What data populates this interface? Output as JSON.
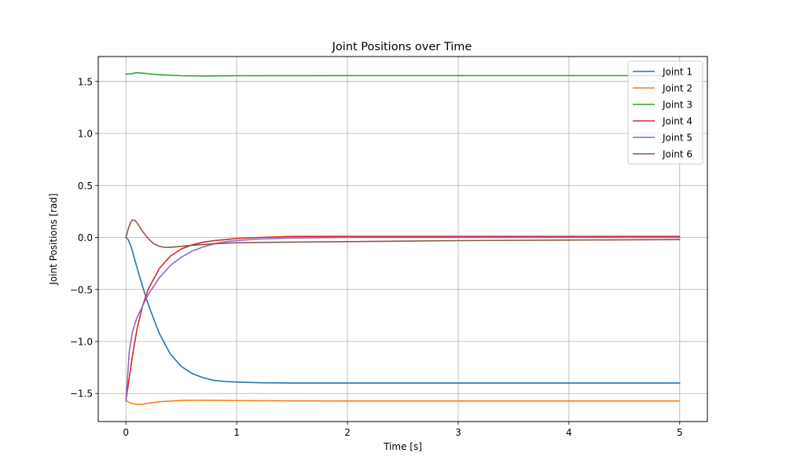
{
  "chart_data": {
    "type": "line",
    "title": "Joint Positions over Time",
    "xlabel": "Time [s]",
    "ylabel": "Joint Positions [rad]",
    "xlim": [
      -0.25,
      5.25
    ],
    "ylim": [
      -1.77,
      1.74
    ],
    "xticks": [
      0,
      1,
      2,
      3,
      4,
      5
    ],
    "xtick_labels": [
      "0",
      "1",
      "2",
      "3",
      "4",
      "5"
    ],
    "yticks": [
      -1.5,
      -1.0,
      -0.5,
      0.0,
      0.5,
      1.0,
      1.5
    ],
    "ytick_labels": [
      "−1.5",
      "−1.0",
      "−0.5",
      "0.0",
      "0.5",
      "1.0",
      "1.5"
    ],
    "grid": true,
    "legend_position": "top-right",
    "series": [
      {
        "name": "Joint 1",
        "color": "#1f77b4",
        "x": [
          0,
          0.02,
          0.05,
          0.1,
          0.15,
          0.2,
          0.3,
          0.4,
          0.5,
          0.6,
          0.7,
          0.8,
          0.9,
          1.0,
          1.2,
          1.5,
          2,
          3,
          4,
          5
        ],
        "y": [
          0,
          -0.02,
          -0.1,
          -0.29,
          -0.47,
          -0.64,
          -0.92,
          -1.12,
          -1.24,
          -1.31,
          -1.35,
          -1.375,
          -1.385,
          -1.39,
          -1.397,
          -1.4,
          -1.4,
          -1.4,
          -1.4,
          -1.4
        ]
      },
      {
        "name": "Joint 2",
        "color": "#ff7f0e",
        "x": [
          0,
          0.05,
          0.1,
          0.15,
          0.2,
          0.3,
          0.5,
          0.7,
          1.0,
          1.5,
          2,
          3,
          4,
          5
        ],
        "y": [
          -1.57,
          -1.595,
          -1.605,
          -1.603,
          -1.595,
          -1.58,
          -1.567,
          -1.565,
          -1.568,
          -1.571,
          -1.572,
          -1.572,
          -1.572,
          -1.572
        ]
      },
      {
        "name": "Joint 3",
        "color": "#2ca02c",
        "x": [
          0,
          0.05,
          0.1,
          0.2,
          0.3,
          0.5,
          0.7,
          1.0,
          2,
          3,
          4,
          5
        ],
        "y": [
          1.57,
          1.575,
          1.585,
          1.575,
          1.565,
          1.555,
          1.553,
          1.555,
          1.556,
          1.556,
          1.556,
          1.556
        ]
      },
      {
        "name": "Joint 4",
        "color": "#d62728",
        "x": [
          0,
          0.03,
          0.06,
          0.1,
          0.15,
          0.2,
          0.3,
          0.4,
          0.5,
          0.6,
          0.7,
          0.8,
          0.9,
          1.0,
          1.2,
          1.5,
          2,
          3,
          4,
          5
        ],
        "y": [
          -1.57,
          -1.35,
          -1.13,
          -0.88,
          -0.66,
          -0.5,
          -0.3,
          -0.18,
          -0.11,
          -0.07,
          -0.045,
          -0.03,
          -0.02,
          -0.01,
          0.0,
          0.01,
          0.01,
          0.01,
          0.01,
          0.01
        ]
      },
      {
        "name": "Joint 5",
        "color": "#9467bd",
        "x": [
          0,
          0.03,
          0.06,
          0.1,
          0.15,
          0.2,
          0.3,
          0.4,
          0.5,
          0.6,
          0.7,
          0.8,
          0.9,
          1.0,
          1.2,
          1.5,
          2,
          3,
          4,
          5
        ],
        "y": [
          -1.57,
          -1.1,
          -0.9,
          -0.77,
          -0.66,
          -0.55,
          -0.39,
          -0.27,
          -0.19,
          -0.13,
          -0.09,
          -0.06,
          -0.04,
          -0.03,
          -0.015,
          -0.005,
          0.0,
          0.0,
          0.0,
          0.0
        ]
      },
      {
        "name": "Joint 6",
        "color": "#8c564b",
        "x": [
          0,
          0.02,
          0.04,
          0.06,
          0.08,
          0.1,
          0.15,
          0.2,
          0.25,
          0.3,
          0.35,
          0.4,
          0.5,
          0.6,
          0.8,
          1.0,
          1.5,
          2,
          3,
          4,
          5
        ],
        "y": [
          0,
          0.08,
          0.14,
          0.17,
          0.165,
          0.14,
          0.06,
          -0.01,
          -0.06,
          -0.085,
          -0.095,
          -0.095,
          -0.085,
          -0.075,
          -0.06,
          -0.05,
          -0.045,
          -0.04,
          -0.03,
          -0.025,
          -0.02
        ]
      }
    ]
  }
}
